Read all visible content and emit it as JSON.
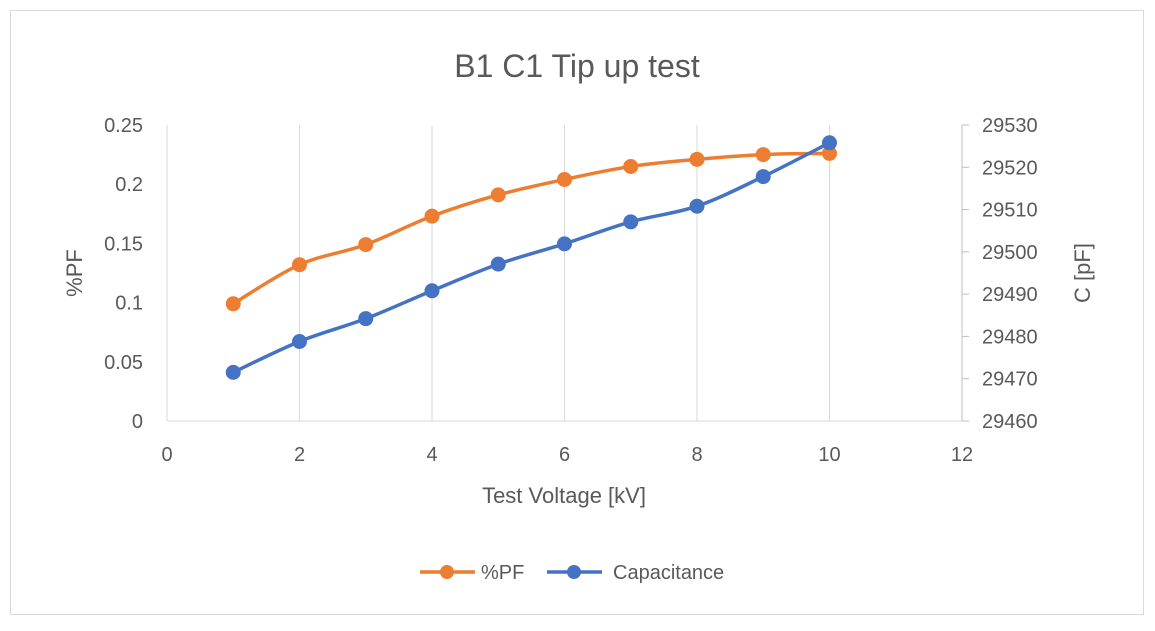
{
  "chart_data": {
    "type": "line",
    "title": "B1 C1 Tip up test",
    "xlabel": "Test Voltage [kV]",
    "ylabel": "%PF",
    "y2label": "C [pF]",
    "xlim": [
      0,
      12
    ],
    "xticks": [
      0,
      2,
      4,
      6,
      8,
      10,
      12
    ],
    "ylim": [
      0,
      0.25
    ],
    "yticks": [
      "0",
      "0.05",
      "0.1",
      "0.15",
      "0.2",
      "0.25"
    ],
    "y2lim": [
      29460,
      29530
    ],
    "y2ticks": [
      "29460",
      "29470",
      "29480",
      "29490",
      "29500",
      "29510",
      "29520",
      "29530"
    ],
    "grid": "vertical",
    "legend": "bottom",
    "series": [
      {
        "name": "%PF",
        "axis": "left",
        "color": "#ED7D31",
        "x": [
          1,
          2,
          3,
          4,
          5,
          6,
          7,
          8,
          9,
          10
        ],
        "y": [
          0.099,
          0.132,
          0.149,
          0.173,
          0.191,
          0.204,
          0.215,
          0.221,
          0.225,
          0.226
        ]
      },
      {
        "name": "Capacitance",
        "axis": "right",
        "color": "#4472C4",
        "x": [
          1,
          2,
          3,
          4,
          5,
          6,
          7,
          8,
          9,
          10
        ],
        "y": [
          29471.5,
          29478.8,
          29484.2,
          29490.8,
          29497.1,
          29501.9,
          29507.1,
          29510.8,
          29517.8,
          29525.8
        ]
      }
    ]
  }
}
